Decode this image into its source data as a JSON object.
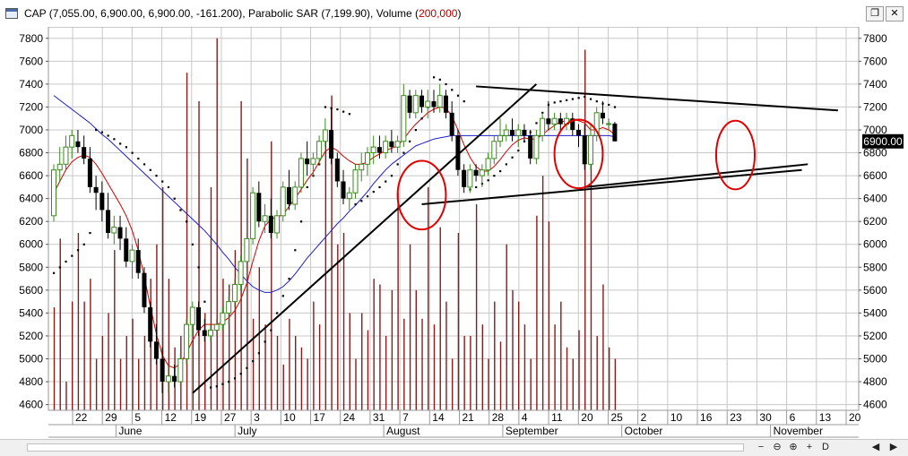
{
  "window": {
    "title_prefix": "CAP (7,055.00, 6,900.00, 6,900.00, -161.200), Parabolic SAR (7,199.90), Volume (",
    "title_volume": "200,000",
    "title_suffix": ")",
    "restore_glyph": "❐",
    "close_glyph": "✕"
  },
  "scroll": {
    "labels": [
      "−",
      "⊖",
      "⊕",
      "+",
      "D",
      "◀",
      "▶"
    ]
  },
  "colors": {
    "grid": "#c8c8c8",
    "candle_up": "#3b8a1e",
    "candle_down": "#000000",
    "volume": "#8b1a1a",
    "sar": "#000000",
    "ma_short": "#d40000",
    "ma_long": "#1f1fc8",
    "trendline": "#000000",
    "circle": "#e00000",
    "price_label_bg": "#000000",
    "price_label_fg": "#ffffff"
  },
  "chart_data": {
    "type": "candlestick",
    "symbol": "CAP",
    "ylim": [
      4550,
      7900
    ],
    "y_ticks": [
      "7800",
      "7600",
      "7400",
      "7200",
      "7000",
      "6800",
      "6600",
      "6400",
      "6200",
      "6000",
      "5800",
      "5600",
      "5400",
      "5200",
      "5000",
      "4800",
      "4600"
    ],
    "x_ticks": [
      "22",
      "29",
      "5",
      "12",
      "19",
      "27",
      "3",
      "10",
      "17",
      "24",
      "31",
      "7",
      "14",
      "21",
      "28",
      "4",
      "11",
      "20",
      "25",
      "2",
      "10",
      "16",
      "23",
      "30",
      "6",
      "13",
      "20"
    ],
    "months": [
      "June",
      "July",
      "August",
      "September",
      "October",
      "November"
    ],
    "last_price_label": "6900.00",
    "legend": [
      "Parabolic SAR (7,199.90)",
      "Volume (200,000)"
    ],
    "candles": [
      {
        "o": 6250,
        "h": 6700,
        "l": 6200,
        "c": 6650
      },
      {
        "o": 6650,
        "h": 6850,
        "l": 6550,
        "c": 6700
      },
      {
        "o": 6700,
        "h": 6950,
        "l": 6650,
        "c": 6850
      },
      {
        "o": 6850,
        "h": 7000,
        "l": 6750,
        "c": 6950
      },
      {
        "o": 6900,
        "h": 7000,
        "l": 6800,
        "c": 6850
      },
      {
        "o": 6850,
        "h": 6950,
        "l": 6700,
        "c": 6750
      },
      {
        "o": 6750,
        "h": 6850,
        "l": 6450,
        "c": 6500
      },
      {
        "o": 6500,
        "h": 6600,
        "l": 6300,
        "c": 6450
      },
      {
        "o": 6450,
        "h": 6550,
        "l": 6200,
        "c": 6300
      },
      {
        "o": 6300,
        "h": 6450,
        "l": 6050,
        "c": 6100
      },
      {
        "o": 6100,
        "h": 6250,
        "l": 6000,
        "c": 6150
      },
      {
        "o": 6150,
        "h": 6250,
        "l": 5950,
        "c": 6050
      },
      {
        "o": 6050,
        "h": 6150,
        "l": 5800,
        "c": 5850
      },
      {
        "o": 5850,
        "h": 6000,
        "l": 5700,
        "c": 5950
      },
      {
        "o": 5950,
        "h": 6050,
        "l": 5700,
        "c": 5750
      },
      {
        "o": 5750,
        "h": 5800,
        "l": 5400,
        "c": 5450
      },
      {
        "o": 5450,
        "h": 5500,
        "l": 5100,
        "c": 5150
      },
      {
        "o": 5150,
        "h": 5300,
        "l": 4950,
        "c": 5000
      },
      {
        "o": 5000,
        "h": 5100,
        "l": 4700,
        "c": 4800
      },
      {
        "o": 4800,
        "h": 4950,
        "l": 4700,
        "c": 4850
      },
      {
        "o": 4850,
        "h": 4950,
        "l": 4750,
        "c": 4800
      },
      {
        "o": 4800,
        "h": 5050,
        "l": 4750,
        "c": 5000
      },
      {
        "o": 5000,
        "h": 5350,
        "l": 4950,
        "c": 5300
      },
      {
        "o": 5300,
        "h": 5500,
        "l": 5200,
        "c": 5450
      },
      {
        "o": 5450,
        "h": 5500,
        "l": 5200,
        "c": 5250
      },
      {
        "o": 5250,
        "h": 5350,
        "l": 5150,
        "c": 5200
      },
      {
        "o": 5200,
        "h": 5300,
        "l": 5150,
        "c": 5250
      },
      {
        "o": 5250,
        "h": 5350,
        "l": 5200,
        "c": 5300
      },
      {
        "o": 5300,
        "h": 5450,
        "l": 5250,
        "c": 5400
      },
      {
        "o": 5400,
        "h": 5550,
        "l": 5300,
        "c": 5500
      },
      {
        "o": 5500,
        "h": 5700,
        "l": 5450,
        "c": 5650
      },
      {
        "o": 5650,
        "h": 5900,
        "l": 5600,
        "c": 5850
      },
      {
        "o": 5850,
        "h": 6100,
        "l": 5800,
        "c": 6050
      },
      {
        "o": 6050,
        "h": 6500,
        "l": 6000,
        "c": 6450
      },
      {
        "o": 6450,
        "h": 6550,
        "l": 6150,
        "c": 6200
      },
      {
        "o": 6200,
        "h": 6350,
        "l": 6100,
        "c": 6250
      },
      {
        "o": 6250,
        "h": 6400,
        "l": 6050,
        "c": 6100
      },
      {
        "o": 6100,
        "h": 6300,
        "l": 6050,
        "c": 6250
      },
      {
        "o": 6250,
        "h": 6550,
        "l": 6200,
        "c": 6500
      },
      {
        "o": 6500,
        "h": 6650,
        "l": 6300,
        "c": 6350
      },
      {
        "o": 6350,
        "h": 6550,
        "l": 6300,
        "c": 6500
      },
      {
        "o": 6500,
        "h": 6800,
        "l": 6450,
        "c": 6750
      },
      {
        "o": 6750,
        "h": 6900,
        "l": 6600,
        "c": 6700
      },
      {
        "o": 6700,
        "h": 6800,
        "l": 6600,
        "c": 6750
      },
      {
        "o": 6750,
        "h": 6950,
        "l": 6700,
        "c": 6900
      },
      {
        "o": 6900,
        "h": 7100,
        "l": 6850,
        "c": 7000
      },
      {
        "o": 7000,
        "h": 7200,
        "l": 6700,
        "c": 6750
      },
      {
        "o": 6750,
        "h": 6800,
        "l": 6500,
        "c": 6550
      },
      {
        "o": 6550,
        "h": 6650,
        "l": 6350,
        "c": 6400
      },
      {
        "o": 6400,
        "h": 6500,
        "l": 6300,
        "c": 6450
      },
      {
        "o": 6450,
        "h": 6700,
        "l": 6400,
        "c": 6650
      },
      {
        "o": 6650,
        "h": 6800,
        "l": 6550,
        "c": 6700
      },
      {
        "o": 6700,
        "h": 6850,
        "l": 6600,
        "c": 6800
      },
      {
        "o": 6800,
        "h": 6950,
        "l": 6700,
        "c": 6850
      },
      {
        "o": 6850,
        "h": 6950,
        "l": 6750,
        "c": 6800
      },
      {
        "o": 6800,
        "h": 6950,
        "l": 6750,
        "c": 6900
      },
      {
        "o": 6900,
        "h": 7000,
        "l": 6800,
        "c": 6850
      },
      {
        "o": 6850,
        "h": 6950,
        "l": 6800,
        "c": 6900
      },
      {
        "o": 6900,
        "h": 7400,
        "l": 6850,
        "c": 7300
      },
      {
        "o": 7300,
        "h": 7350,
        "l": 7100,
        "c": 7150
      },
      {
        "o": 7150,
        "h": 7350,
        "l": 7100,
        "c": 7300
      },
      {
        "o": 7300,
        "h": 7350,
        "l": 7150,
        "c": 7200
      },
      {
        "o": 7200,
        "h": 7350,
        "l": 7100,
        "c": 7250
      },
      {
        "o": 7250,
        "h": 7350,
        "l": 7150,
        "c": 7200
      },
      {
        "o": 7200,
        "h": 7400,
        "l": 7150,
        "c": 7300
      },
      {
        "o": 7300,
        "h": 7350,
        "l": 7100,
        "c": 7150
      },
      {
        "o": 7150,
        "h": 7250,
        "l": 6900,
        "c": 6950
      },
      {
        "o": 6950,
        "h": 7000,
        "l": 6600,
        "c": 6650
      },
      {
        "o": 6650,
        "h": 6700,
        "l": 6450,
        "c": 6500
      },
      {
        "o": 6500,
        "h": 6700,
        "l": 6450,
        "c": 6650
      },
      {
        "o": 6650,
        "h": 6700,
        "l": 6550,
        "c": 6600
      },
      {
        "o": 6600,
        "h": 6700,
        "l": 6500,
        "c": 6650
      },
      {
        "o": 6650,
        "h": 6800,
        "l": 6600,
        "c": 6750
      },
      {
        "o": 6750,
        "h": 6950,
        "l": 6700,
        "c": 6900
      },
      {
        "o": 6900,
        "h": 7100,
        "l": 6850,
        "c": 6950
      },
      {
        "o": 6950,
        "h": 7050,
        "l": 6900,
        "c": 7000
      },
      {
        "o": 7000,
        "h": 7100,
        "l": 6900,
        "c": 6950
      },
      {
        "o": 6950,
        "h": 7050,
        "l": 6850,
        "c": 7000
      },
      {
        "o": 7000,
        "h": 7050,
        "l": 6900,
        "c": 6950
      },
      {
        "o": 6950,
        "h": 7000,
        "l": 6700,
        "c": 6750
      },
      {
        "o": 6750,
        "h": 7000,
        "l": 6700,
        "c": 6950
      },
      {
        "o": 6950,
        "h": 7150,
        "l": 6900,
        "c": 7100
      },
      {
        "o": 7100,
        "h": 7250,
        "l": 7000,
        "c": 7050
      },
      {
        "o": 7050,
        "h": 7150,
        "l": 7000,
        "c": 7100
      },
      {
        "o": 7100,
        "h": 7150,
        "l": 7000,
        "c": 7050
      },
      {
        "o": 7050,
        "h": 7150,
        "l": 7000,
        "c": 7100
      },
      {
        "o": 7100,
        "h": 7150,
        "l": 6950,
        "c": 7000
      },
      {
        "o": 7000,
        "h": 7050,
        "l": 6850,
        "c": 6950
      },
      {
        "o": 6950,
        "h": 7050,
        "l": 6650,
        "c": 6700
      },
      {
        "o": 6700,
        "h": 7050,
        "l": 6650,
        "c": 6950
      },
      {
        "o": 6950,
        "h": 7200,
        "l": 6900,
        "c": 7150
      },
      {
        "o": 7150,
        "h": 7250,
        "l": 7050,
        "c": 7100
      },
      {
        "o": 7050,
        "h": 7100,
        "l": 7000,
        "c": 7055
      },
      {
        "o": 7055,
        "h": 7070,
        "l": 6900,
        "c": 6900
      }
    ],
    "volume": [
      5450,
      6050,
      4800,
      5500,
      6100,
      5500,
      5700,
      5000,
      5200,
      5400,
      5950,
      5000,
      5200,
      5350,
      5000,
      5200,
      5700,
      6000,
      6500,
      5700,
      5100,
      5200,
      7500,
      5300,
      7250,
      5400,
      6500,
      7800,
      5700,
      5650,
      5950,
      7250,
      6750,
      5350,
      5800,
      5300,
      6900,
      5200,
      4950,
      5350,
      5200,
      5100,
      5000,
      5500,
      5300,
      7000,
      7300,
      6000,
      6100,
      5400,
      5000,
      5400,
      5250,
      5700,
      5650,
      5200,
      5600,
      6450,
      5350,
      6000,
      5600,
      5350,
      6500,
      5300,
      6150,
      5500,
      5000,
      6100,
      5200,
      5200,
      6350,
      5300,
      5000,
      5500,
      5150,
      6000,
      5600,
      5500,
      5300,
      5000,
      6250,
      6600,
      6200,
      5300,
      5500,
      5100,
      5000,
      5250,
      7700,
      6900,
      5200,
      5650,
      5100,
      5000
    ],
    "sar": [
      5750,
      5800,
      5850,
      5900,
      5950,
      6000,
      6100,
      7000,
      6980,
      6950,
      6920,
      6880,
      6850,
      6800,
      6750,
      6700,
      6650,
      6600,
      6550,
      6500,
      6400,
      6300,
      6200,
      6000,
      5800,
      5500,
      4750,
      4760,
      4780,
      4800,
      4830,
      4870,
      4920,
      4980,
      5050,
      5150,
      5250,
      5400,
      5550,
      5700,
      5950,
      6200,
      6500,
      6600,
      6700,
      7200,
      7190,
      7180,
      7160,
      7140,
      6350,
      6380,
      6420,
      6460,
      6500,
      6550,
      6600,
      6700,
      6800,
      6900,
      7000,
      7100,
      7200,
      7460,
      7440,
      7400,
      7350,
      7300,
      7250,
      6480,
      6500,
      6530,
      6560,
      6600,
      6640,
      6700,
      6760,
      6820,
      6900,
      6980,
      7060,
      7150,
      7220,
      7240,
      7250,
      7260,
      7270,
      7280,
      7290,
      7270,
      7250,
      7230,
      7220,
      7200
    ],
    "ma_short": [
      6450,
      6550,
      6650,
      6720,
      6760,
      6780,
      6760,
      6700,
      6620,
      6530,
      6440,
      6350,
      6250,
      6120,
      5950,
      5720,
      5460,
      5220,
      5030,
      4940,
      4920,
      4960,
      5050,
      5160,
      5250,
      5300,
      5300,
      5300,
      5320,
      5360,
      5420,
      5520,
      5660,
      5850,
      6030,
      6160,
      6220,
      6240,
      6260,
      6330,
      6400,
      6480,
      6560,
      6630,
      6720,
      6810,
      6850,
      6820,
      6770,
      6730,
      6700,
      6700,
      6720,
      6760,
      6790,
      6820,
      6840,
      6860,
      6920,
      6990,
      7050,
      7100,
      7150,
      7180,
      7200,
      7190,
      7120,
      7000,
      6870,
      6760,
      6680,
      6640,
      6640,
      6680,
      6740,
      6810,
      6870,
      6910,
      6930,
      6920,
      6920,
      6960,
      7000,
      7040,
      7070,
      7080,
      7090,
      7080,
      7060,
      7000,
      7000,
      7020,
      7000,
      6960
    ],
    "ma_long": [
      7300,
      7260,
      7220,
      7180,
      7140,
      7100,
      7060,
      7010,
      6960,
      6920,
      6870,
      6820,
      6770,
      6720,
      6670,
      6620,
      6570,
      6520,
      6470,
      6420,
      6370,
      6320,
      6270,
      6220,
      6170,
      6120,
      6060,
      6000,
      5930,
      5870,
      5800,
      5740,
      5680,
      5630,
      5600,
      5580,
      5580,
      5600,
      5630,
      5680,
      5740,
      5810,
      5880,
      5940,
      6000,
      6060,
      6120,
      6180,
      6230,
      6290,
      6340,
      6400,
      6460,
      6530,
      6590,
      6650,
      6700,
      6740,
      6780,
      6820,
      6860,
      6880,
      6900,
      6920,
      6930,
      6940,
      6950,
      6950,
      6950,
      6950,
      6950,
      6950,
      6950,
      6950,
      6950,
      6950,
      6950,
      6950,
      6950,
      6950,
      6950,
      6950,
      6950,
      6950,
      6950,
      6950,
      6950,
      6950,
      6950,
      6950,
      6950,
      6950,
      6950,
      6940
    ],
    "trendlines": [
      {
        "i1": 23,
        "v1": 4700,
        "i2": 80,
        "v2": 7400
      },
      {
        "i1": 61,
        "v1": 6350,
        "i2": 124,
        "v2": 6650
      },
      {
        "i1": 70,
        "v1": 7380,
        "i2": 130,
        "v2": 7170
      },
      {
        "i1": 88,
        "v1": 6500,
        "i2": 125,
        "v2": 6700
      }
    ],
    "circles": [
      {
        "i": 61,
        "v": 6430,
        "ri": 2.0,
        "rv": 300
      },
      {
        "i": 87,
        "v": 6790,
        "ri": 2.0,
        "rv": 300
      },
      {
        "i": 113,
        "v": 6780,
        "ri": 1.6,
        "rv": 300
      }
    ]
  }
}
